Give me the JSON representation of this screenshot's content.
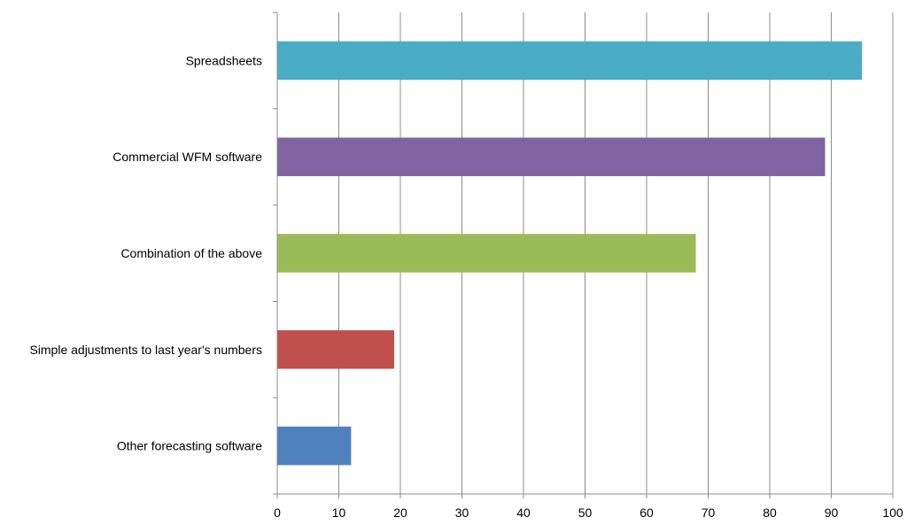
{
  "chart_data": {
    "type": "bar",
    "orientation": "horizontal",
    "title": "",
    "xlabel": "",
    "ylabel": "",
    "xlim": [
      0,
      100
    ],
    "x_ticks": [
      0,
      10,
      20,
      30,
      40,
      50,
      60,
      70,
      80,
      90,
      100
    ],
    "grid": true,
    "legend": "none",
    "categories": [
      "Spreadsheets",
      "Commercial WFM software",
      "Combination of the above",
      "Simple adjustments to last year's numbers",
      "Other forecasting software"
    ],
    "values": [
      95,
      89,
      68,
      19,
      12
    ],
    "colors": [
      "#4BACC6",
      "#8064A2",
      "#9BBB59",
      "#C0504D",
      "#4F81BD"
    ]
  }
}
